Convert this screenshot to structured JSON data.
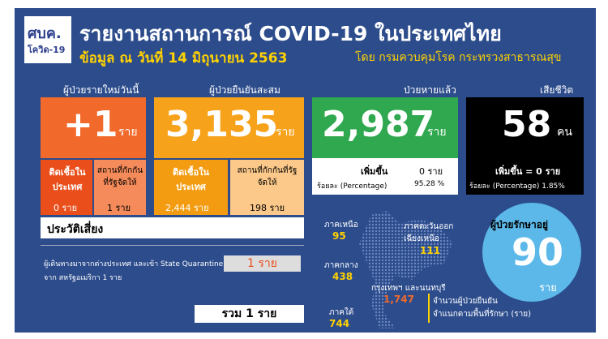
{
  "header": {
    "logo": "ศบค.",
    "logo_sub": "โควิด-19",
    "title": "รายงานสถานการณ์ COVID-19 ในประเทศไทย",
    "date": "ข้อมูล ณ วันที่ 14 มิถุนายน 2563",
    "source": "โดย กรมควบคุมโรค กระทรวงสาธารณสุข"
  },
  "new_cases": {
    "label": "ผู้ป่วยรายใหม่วันนี้",
    "value": "+1",
    "unit": "ราย",
    "local_label": "ติดเชื้อในประเทศ",
    "local_value": "0 ราย",
    "quarantine_label": "สถานที่กักกันที่รัฐจัดให้",
    "quarantine_value": "1 ราย"
  },
  "total": {
    "label": "ผู้ป่วยยืนยันสะสม",
    "value": "3,135",
    "unit": "ราย",
    "local_label": "ติดเชื้อในประเทศ",
    "local_value": "2,444 ราย",
    "quarantine_label": "สถานที่กักกันที่รัฐจัดให้",
    "quarantine_value": "198 ราย"
  },
  "recovered": {
    "label": "ป่วยหายแล้ว",
    "value": "2,987",
    "unit": "ราย",
    "increase_label": "เพิ่มขึ้น",
    "increase_value": "0 ราย",
    "pct_label": "ร้อยละ (Percentage)",
    "pct_value": "95.28 %"
  },
  "deaths": {
    "label": "เสียชีวิต",
    "value": "58",
    "unit": "คน",
    "increase": "เพิ่มขึ้น = 0 ราย",
    "pct": "ร้อยละ (Percentage) 1.85%"
  },
  "risk": {
    "title": "ประวัติเสี่ยง",
    "line1": "ผู้เดินทางมาจากต่างประเทศ และเข้า State Quarantine",
    "line2": "จาก สหรัฐอเมริกา 1 ราย",
    "count": "1 ราย",
    "total": "รวม 1 ราย"
  },
  "regions": [
    {
      "name": "ภาคเหนือ",
      "value": "95"
    },
    {
      "name": "ภาคตะวันออกเฉียงเหนือ",
      "value": "111"
    },
    {
      "name": "ภาคกลาง",
      "value": "438"
    },
    {
      "name": "กรุงเทพฯ และนนทบุรี",
      "value": "1,747"
    },
    {
      "name": "ภาคใต้",
      "value": "744"
    }
  ],
  "map_note": {
    "line1": "จำนวนผู้ป่วยยืนยัน",
    "line2": "จำแนกตามพื้นที่รักษา (ราย)"
  },
  "in_treatment": {
    "label": "ผู้ป่วยรักษาอยู่",
    "value": "90",
    "unit": "ราย"
  }
}
